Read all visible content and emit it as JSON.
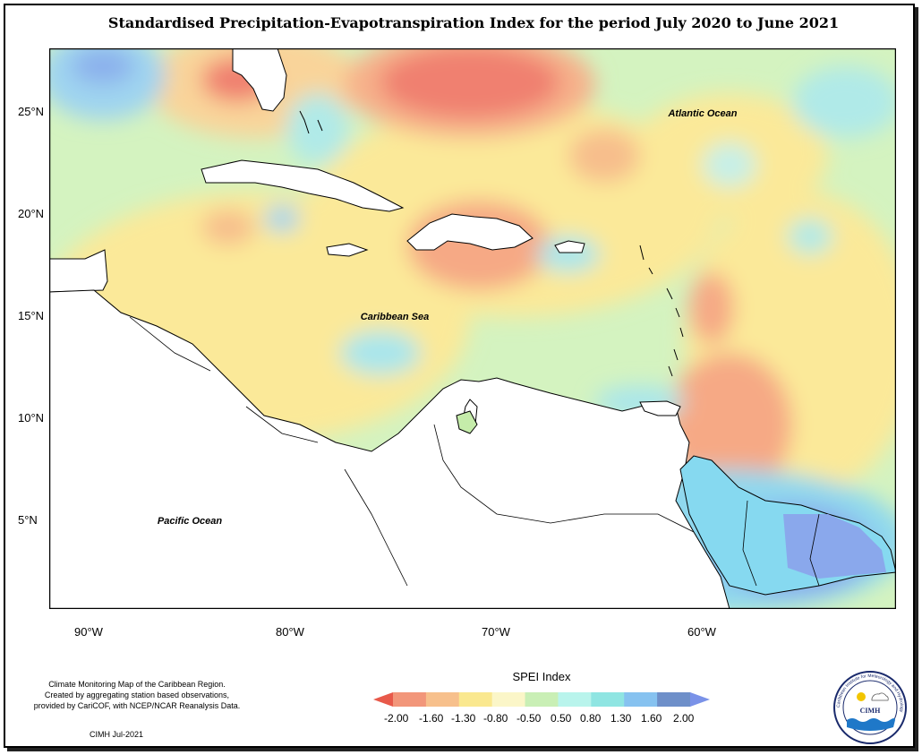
{
  "title": "Standardised Precipitation-Evapotranspiration Index for the period July 2020 to June 2021",
  "labels": {
    "atlantic": "Atlantic Ocean",
    "caribbean": "Caribbean Sea",
    "pacific": "Pacific Ocean"
  },
  "y_ticks": [
    "25°N",
    "20°N",
    "15°N",
    "10°N",
    "5°N"
  ],
  "x_ticks": [
    "90°W",
    "80°W",
    "70°W",
    "60°W"
  ],
  "info_lines": [
    "Climate Monitoring Map of the Caribbean Region.",
    "Created by aggregating station based observations,",
    "provided by CariCOF, with NCEP/NCAR Reanalysis Data."
  ],
  "credit": "CIMH Jul-2021",
  "legend": {
    "title": "SPEI Index",
    "values": [
      "-2.00",
      "-1.60",
      "-1.30",
      "-0.80",
      "-0.50",
      "0.50",
      "0.80",
      "1.30",
      "1.60",
      "2.00"
    ],
    "colors": [
      "#e8594a",
      "#f2967a",
      "#f7c08c",
      "#fae88f",
      "#fbf6c8",
      "#c9efb5",
      "#b9f4ec",
      "#8fe5e2",
      "#86c2f0",
      "#6e8fc9",
      "#7a92e8"
    ]
  },
  "logo": {
    "ring_text": "Caribbean Institute for Meteorology and Hydrology",
    "acronym": "CIMH"
  }
}
